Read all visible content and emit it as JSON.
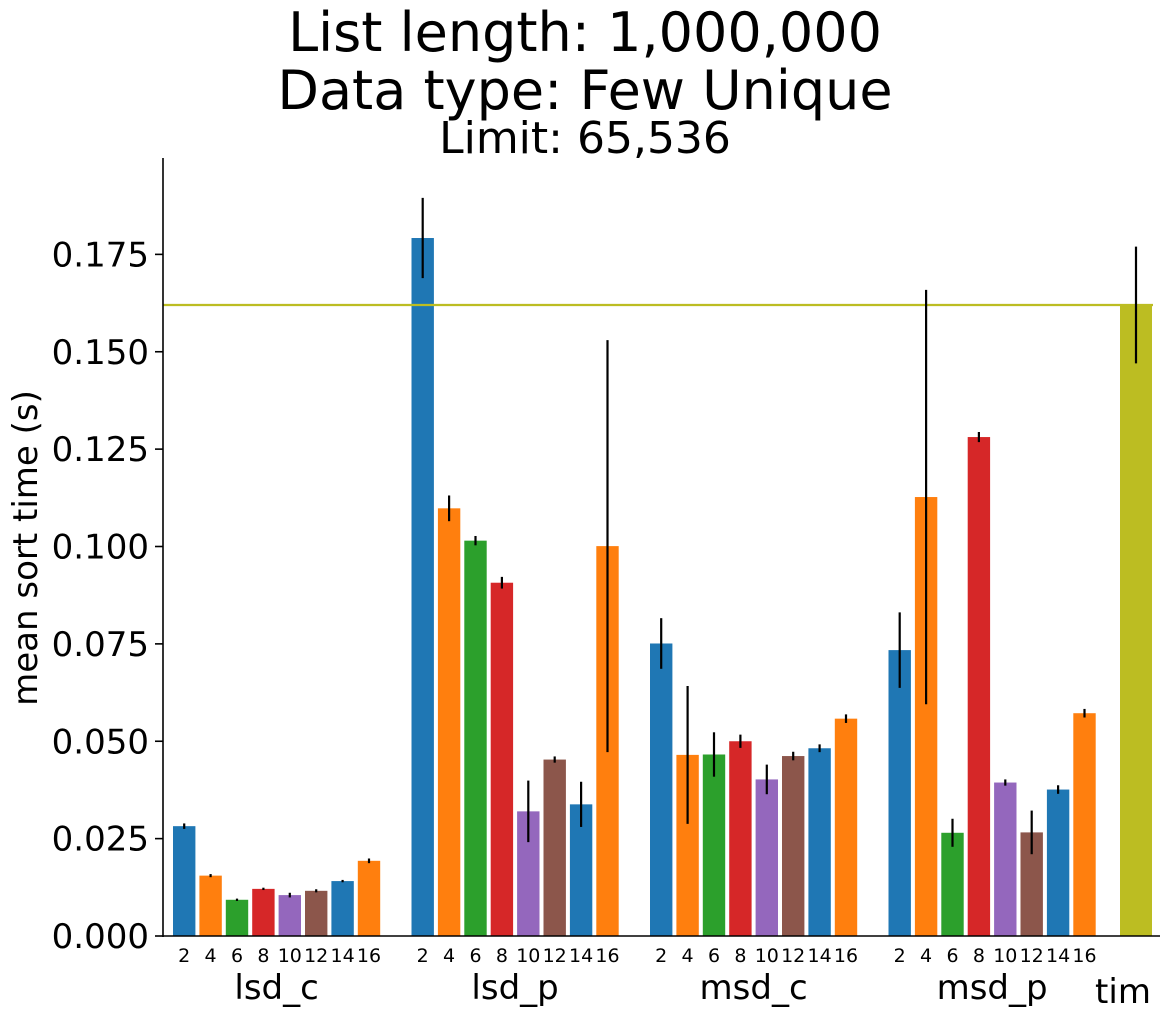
{
  "chart_data": {
    "type": "bar",
    "title": "List length: 1,000,000",
    "subtitle": "Data type: Few Unique",
    "subtitle2": "Limit: 65,536",
    "xlabel": "",
    "ylabel": "mean sort time (s)",
    "ylim": [
      0,
      0.2
    ],
    "yticks": [
      "0.000",
      "0.025",
      "0.050",
      "0.075",
      "0.100",
      "0.125",
      "0.150",
      "0.175"
    ],
    "grid": false,
    "legend": "none",
    "bar_colors": [
      "#1f77b4",
      "#ff7f0e",
      "#2ca02c",
      "#d62728",
      "#9467bd",
      "#8c564b",
      "#1f77b4",
      "#ff7f0e"
    ],
    "groups": [
      {
        "name": "lsd_c",
        "categories": [
          "2",
          "4",
          "6",
          "8",
          "10",
          "12",
          "14",
          "16"
        ],
        "values": [
          0.0282,
          0.0155,
          0.0093,
          0.0121,
          0.0105,
          0.0116,
          0.0141,
          0.0193
        ],
        "errors": [
          0.0007,
          0.0004,
          0.0003,
          0.0003,
          0.0006,
          0.0004,
          0.0003,
          0.0006
        ]
      },
      {
        "name": "lsd_p",
        "categories": [
          "2",
          "4",
          "6",
          "8",
          "10",
          "12",
          "14",
          "16"
        ],
        "values": [
          0.1792,
          0.1098,
          0.1015,
          0.0907,
          0.032,
          0.0453,
          0.0338,
          0.1001
        ],
        "errors": [
          0.0103,
          0.0033,
          0.0012,
          0.0015,
          0.0079,
          0.0008,
          0.0058,
          0.0529
        ]
      },
      {
        "name": "msd_c",
        "categories": [
          "2",
          "4",
          "6",
          "8",
          "10",
          "12",
          "14",
          "16"
        ],
        "values": [
          0.0751,
          0.0465,
          0.0466,
          0.05,
          0.0402,
          0.0462,
          0.0482,
          0.0558
        ],
        "errors": [
          0.0065,
          0.0177,
          0.0057,
          0.0017,
          0.0038,
          0.0011,
          0.001,
          0.0011
        ]
      },
      {
        "name": "msd_p",
        "categories": [
          "2",
          "4",
          "6",
          "8",
          "10",
          "12",
          "14",
          "16"
        ],
        "values": [
          0.0734,
          0.1127,
          0.0265,
          0.1281,
          0.0394,
          0.0266,
          0.0376,
          0.0572
        ],
        "errors": [
          0.0097,
          0.0532,
          0.0036,
          0.0013,
          0.0008,
          0.0056,
          0.0011,
          0.0011
        ]
      }
    ],
    "tim": {
      "name": "tim",
      "value": 0.162,
      "error": 0.015,
      "color": "#bcbd22"
    },
    "reference_line": {
      "y": 0.162,
      "color": "#bcbd22"
    }
  }
}
